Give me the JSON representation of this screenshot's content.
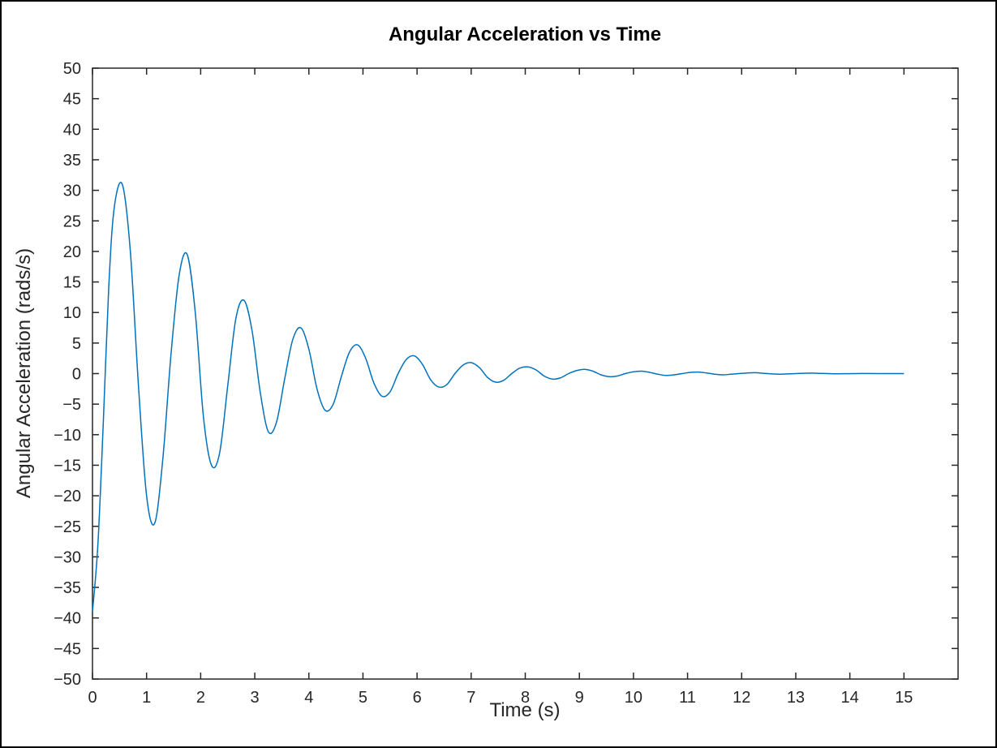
{
  "chart_data": {
    "type": "line",
    "title": "Angular Acceleration vs Time",
    "xlabel": "Time (s)",
    "ylabel": "Angular Acceleration (rads/s)",
    "xlim": [
      0,
      16
    ],
    "ylim": [
      -50,
      50
    ],
    "x_ticks": [
      "0",
      "1",
      "2",
      "3",
      "4",
      "5",
      "6",
      "7",
      "8",
      "9",
      "10",
      "11",
      "12",
      "13",
      "14",
      "15"
    ],
    "y_ticks": [
      "50",
      "45",
      "40",
      "35",
      "30",
      "25",
      "20",
      "15",
      "10",
      "5",
      "0",
      "−5",
      "−10",
      "−15",
      "−20",
      "−25",
      "−30",
      "−35",
      "−40",
      "−45",
      "−50"
    ],
    "grid": false,
    "legend": "none",
    "color": "#0072BD",
    "series": [
      {
        "x": [
          0,
          0.1,
          0.2,
          0.3,
          0.4,
          0.55,
          0.7,
          0.85,
          1.0,
          1.15,
          1.3,
          1.45,
          1.6,
          1.75,
          1.9,
          2.05,
          2.2,
          2.35,
          2.5,
          2.65,
          2.8,
          2.95,
          3.1,
          3.25,
          3.4,
          3.55,
          3.7,
          3.85,
          4.0,
          4.15,
          4.3,
          4.45,
          4.6,
          4.75,
          4.9,
          5.05,
          5.2,
          5.35,
          5.5,
          5.65,
          5.8,
          5.95,
          6.1,
          6.25,
          6.4,
          6.55,
          6.7,
          6.85,
          7.0,
          7.15,
          7.3,
          7.45,
          7.6,
          7.75,
          7.9,
          8.05,
          8.2,
          8.35,
          8.5,
          8.65,
          8.8,
          8.95,
          9.1,
          9.25,
          9.4,
          9.55,
          9.7,
          9.85,
          10.0,
          10.15,
          10.3,
          10.45,
          10.6,
          10.75,
          10.9,
          11.05,
          11.2,
          11.35,
          11.5,
          11.65,
          11.8,
          11.95,
          12.1,
          12.25,
          12.4,
          12.55,
          12.7,
          12.85,
          13.0,
          13.15,
          13.3,
          13.45,
          13.6,
          13.75,
          13.9,
          14.05,
          14.2,
          14.35,
          14.5,
          14.65,
          14.8,
          15.0
        ],
        "y": [
          -39,
          -28,
          -8,
          14,
          27,
          31,
          20,
          -2,
          -20,
          -24.5,
          -14,
          3,
          16,
          19.5,
          10,
          -7,
          -15,
          -13,
          -2,
          9,
          12,
          7,
          -3,
          -9.5,
          -8,
          -1,
          5.5,
          7.5,
          4,
          -2.5,
          -6,
          -5,
          -0.5,
          3.5,
          4.7,
          2.5,
          -1.5,
          -3.7,
          -3,
          0,
          2.3,
          2.9,
          1.5,
          -1,
          -2.2,
          -1.8,
          0,
          1.4,
          1.8,
          1,
          -0.6,
          -1.4,
          -1.1,
          0,
          0.9,
          1.1,
          0.6,
          -0.4,
          -0.9,
          -0.7,
          0,
          0.5,
          0.7,
          0.4,
          -0.2,
          -0.5,
          -0.4,
          0,
          0.3,
          0.4,
          0.2,
          -0.1,
          -0.3,
          -0.2,
          0,
          0.2,
          0.25,
          0.1,
          -0.1,
          -0.2,
          -0.1,
          0,
          0.1,
          0.15,
          0.05,
          -0.05,
          -0.1,
          -0.05,
          0,
          0.05,
          0.08,
          0.03,
          0,
          -0.03,
          -0.02,
          0,
          0.01,
          0.01,
          0,
          0,
          0,
          0
        ]
      }
    ]
  }
}
